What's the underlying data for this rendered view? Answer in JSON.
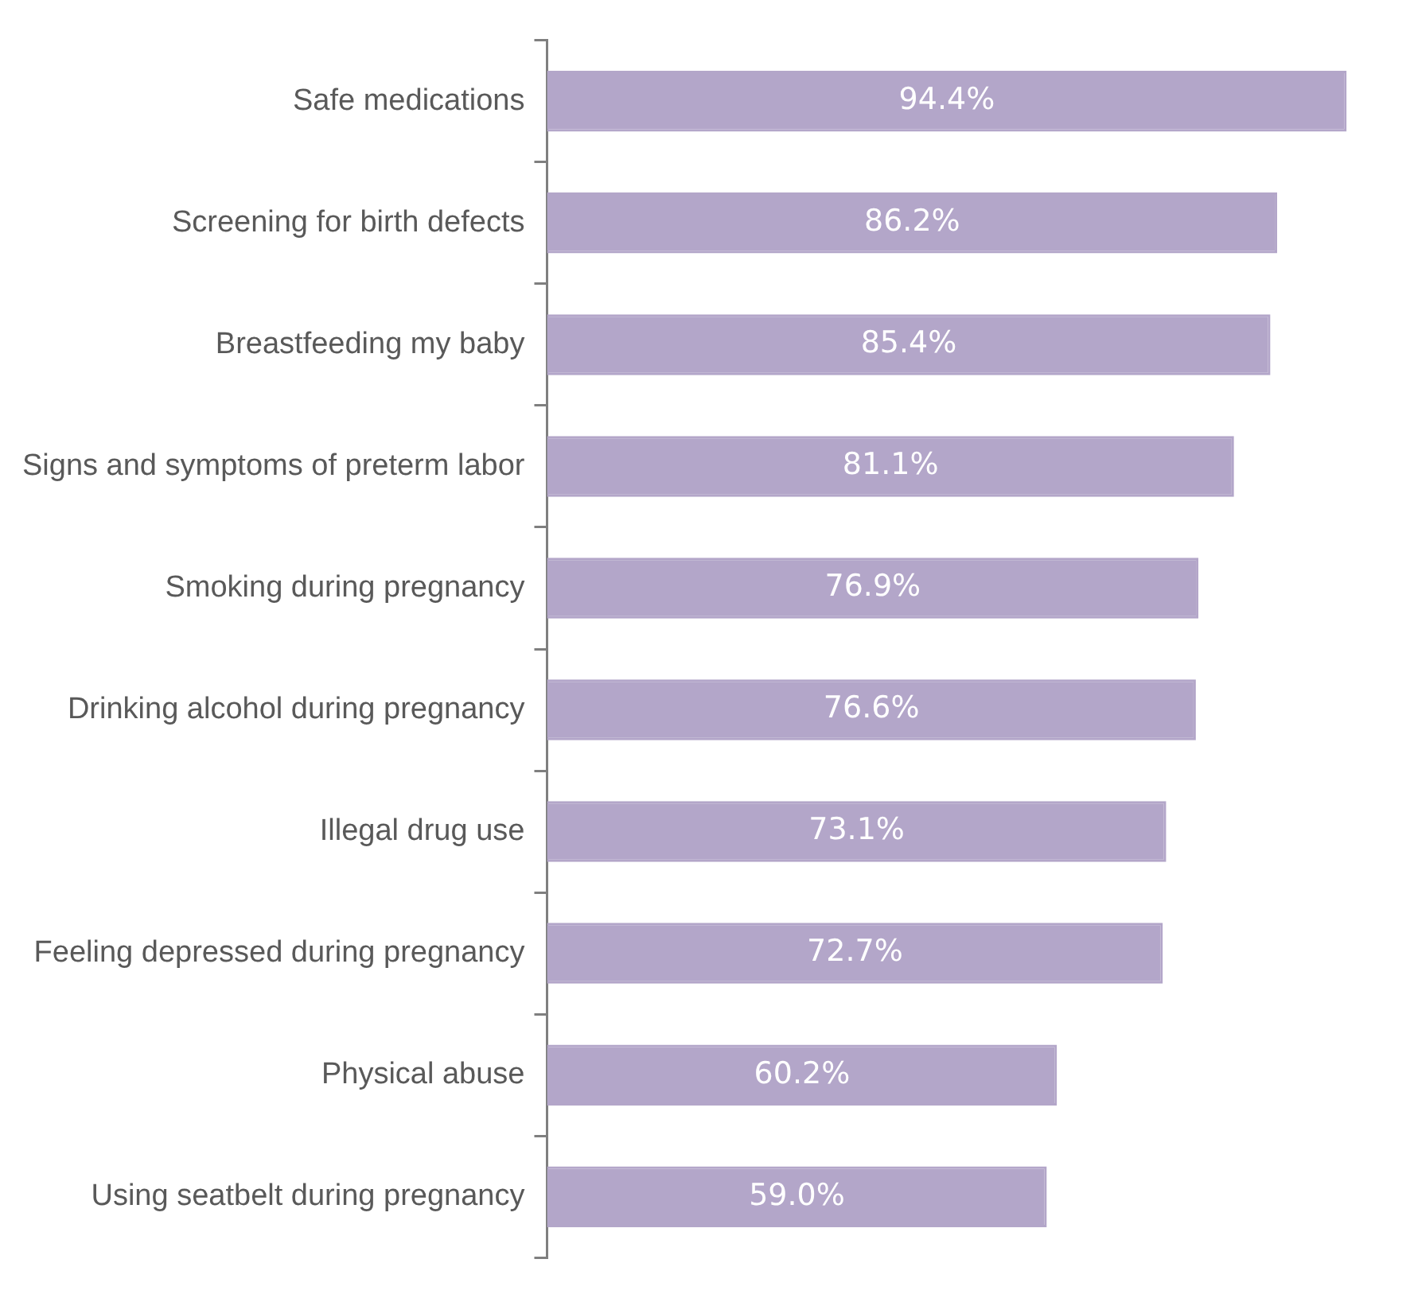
{
  "chart_data": {
    "type": "bar",
    "orientation": "horizontal",
    "categories": [
      "Safe medications",
      "Screening for birth defects",
      "Breastfeeding my baby",
      "Signs and symptoms of preterm labor",
      "Smoking during pregnancy",
      "Drinking alcohol during pregnancy",
      "Illegal drug use",
      "Feeling depressed during pregnancy",
      "Physical abuse",
      "Using seatbelt during pregnancy"
    ],
    "values": [
      94.4,
      86.2,
      85.4,
      81.1,
      76.9,
      76.6,
      73.1,
      72.7,
      60.2,
      59.0
    ],
    "value_labels": [
      "94.4%",
      "86.2%",
      "85.4%",
      "81.1%",
      "76.9%",
      "76.6%",
      "73.1%",
      "72.7%",
      "60.2%",
      "59.0%"
    ],
    "color": "#b3a6c9",
    "legend": false,
    "tick_labels": "y"
  }
}
